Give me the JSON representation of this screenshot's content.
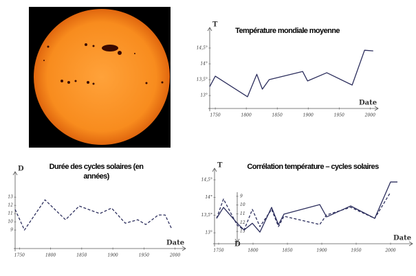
{
  "chart_data": [
    {
      "type": "line",
      "title": "Température mondiale moyenne",
      "y_label": "T",
      "x_label": "Date",
      "x": [
        1741,
        1750,
        1802,
        1817,
        1826,
        1837,
        1891,
        1899,
        1930,
        1971,
        1991,
        2005
      ],
      "series": [
        {
          "color": "#2b2d5c",
          "style": "solid",
          "values": [
            13.28,
            13.61,
            12.96,
            13.67,
            13.2,
            13.5,
            13.76,
            13.46,
            13.72,
            13.33,
            14.43,
            14.41
          ]
        }
      ],
      "xlim": [
        1741,
        2013
      ],
      "xticks": [
        1750,
        1800,
        1850,
        1900,
        1950,
        2000
      ],
      "ylim": [
        12.59,
        15.15
      ],
      "yticks": [
        {
          "value": 13,
          "label": "13°"
        },
        {
          "value": 13.5,
          "label": "13,5°"
        },
        {
          "value": 14,
          "label": "14°"
        },
        {
          "value": 14.5,
          "label": "14,5°"
        }
      ]
    },
    {
      "type": "line",
      "title": "Durée des cycles solaires (en années)",
      "y_label": "D",
      "x_label": "Date",
      "x": [
        1743,
        1758,
        1791,
        1824,
        1846,
        1879,
        1898,
        1920,
        1940,
        1953,
        1973,
        1984,
        1995
      ],
      "series": [
        {
          "color": "#2b2d5c",
          "style": "dashed",
          "values": [
            11.5,
            9.0,
            12.67,
            10.25,
            11.92,
            11.0,
            11.67,
            9.83,
            10.25,
            9.67,
            10.83,
            10.83,
            9.08
          ]
        }
      ],
      "xlim": [
        1743,
        2017
      ],
      "xticks": [
        1750,
        1800,
        1850,
        1900,
        1950,
        2000
      ],
      "ylim": [
        6.75,
        16.1
      ],
      "yticks": [
        9,
        10,
        11,
        12,
        13
      ]
    },
    {
      "type": "line",
      "title": "Corrélation température – cycles solaires",
      "y_label": "T",
      "y2_label": "D",
      "x_label": "Date",
      "x": [
        1747,
        1757,
        1777,
        1787,
        1799,
        1810,
        1827,
        1837,
        1845,
        1897,
        1907,
        1942,
        1977,
        2000,
        2010
      ],
      "series": [
        {
          "color": "#2b2d5c",
          "style": "solid",
          "values": [
            13.41,
            13.72,
            13.27,
            13.08,
            13.27,
            13.02,
            13.72,
            13.23,
            13.53,
            13.8,
            13.45,
            13.76,
            13.41,
            14.44,
            14.44
          ]
        },
        {
          "color": "#2b2d5c",
          "style": "dashed",
          "axis": "y2",
          "values": [
            11.51,
            9.31,
            12.29,
            12.84,
            10.49,
            12.45,
            10.49,
            12.45,
            11.27,
            12.21,
            11.12,
            10.25,
            11.51,
            8.53,
            null
          ]
        }
      ],
      "xlim": [
        1744,
        2032
      ],
      "xticks": [
        1750,
        1800,
        1850,
        1900,
        1950,
        2000
      ],
      "ylim": [
        12.69,
        14.83
      ],
      "yticks": [
        {
          "value": 13,
          "label": "13°"
        },
        {
          "value": 13.5,
          "label": "13,5°"
        },
        {
          "value": 14,
          "label": "14°"
        },
        {
          "value": 14.5,
          "label": "14,5°"
        }
      ],
      "y2lim": [
        14.4,
        5.8
      ],
      "y2ticks": [
        9,
        10,
        11,
        12,
        13
      ]
    }
  ]
}
